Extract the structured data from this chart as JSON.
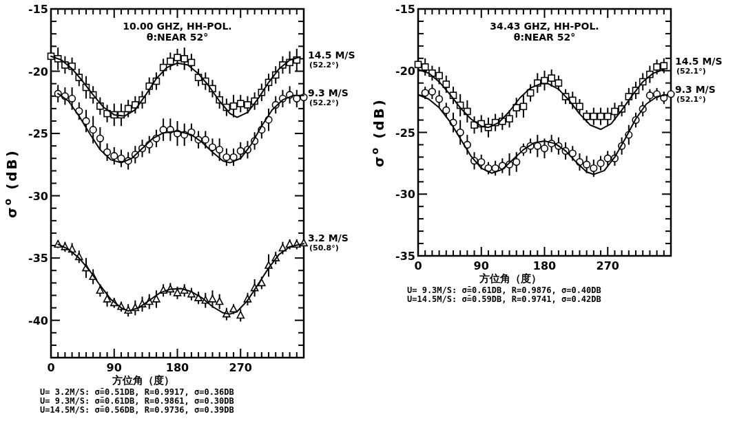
{
  "chart_data": [
    {
      "type": "scatter",
      "legend": "right",
      "title": "10.00 GHZ, HH-POL.",
      "subtitle": "θ:NEAR 52°",
      "xlabel": "方位角（度）",
      "ylabel": "σ$^{o}$ (dB)",
      "xlim": [
        0,
        360
      ],
      "ylim": [
        -43,
        -15
      ],
      "xticks": [
        0,
        {
          "value": 10,
          "label": null
        },
        {
          "value": 20,
          "label": null
        },
        {
          "value": 30,
          "label": null
        },
        {
          "value": 40,
          "label": null
        },
        {
          "value": 50,
          "label": null
        },
        {
          "value": 60,
          "label": null
        },
        {
          "value": 70,
          "label": null
        },
        {
          "value": 80,
          "label": null
        },
        90,
        {
          "value": 100,
          "label": null
        },
        {
          "value": 110,
          "label": null
        },
        {
          "value": 120,
          "label": null
        },
        {
          "value": 130,
          "label": null
        },
        {
          "value": 140,
          "label": null
        },
        {
          "value": 150,
          "label": null
        },
        {
          "value": 160,
          "label": null
        },
        {
          "value": 170,
          "label": null
        },
        180,
        {
          "value": 190,
          "label": null
        },
        {
          "value": 200,
          "label": null
        },
        {
          "value": 210,
          "label": null
        },
        {
          "value": 220,
          "label": null
        },
        {
          "value": 230,
          "label": null
        },
        {
          "value": 240,
          "label": null
        },
        {
          "value": 250,
          "label": null
        },
        {
          "value": 260,
          "label": null
        },
        270,
        {
          "value": 280,
          "label": null
        },
        {
          "value": 290,
          "label": null
        },
        {
          "value": 300,
          "label": null
        },
        {
          "value": 310,
          "label": null
        },
        {
          "value": 320,
          "label": null
        },
        {
          "value": 330,
          "label": null
        },
        {
          "value": 340,
          "label": null
        },
        {
          "value": 350,
          "label": null
        },
        {
          "value": 360,
          "label": null
        }
      ],
      "yticks": [
        {
          "value": -43,
          "label": null
        },
        {
          "value": -42,
          "label": null
        },
        {
          "value": -41,
          "label": null
        },
        -40,
        {
          "value": -39,
          "label": null
        },
        {
          "value": -38,
          "label": null
        },
        {
          "value": -37,
          "label": null
        },
        {
          "value": -36,
          "label": null
        },
        -35,
        {
          "value": -34,
          "label": null
        },
        {
          "value": -33,
          "label": null
        },
        {
          "value": -32,
          "label": null
        },
        {
          "value": -31,
          "label": null
        },
        -30,
        {
          "value": -29,
          "label": null
        },
        {
          "value": -28,
          "label": null
        },
        {
          "value": -27,
          "label": null
        },
        {
          "value": -26,
          "label": null
        },
        -25,
        {
          "value": -24,
          "label": null
        },
        {
          "value": -23,
          "label": null
        },
        {
          "value": -22,
          "label": null
        },
        {
          "value": -21,
          "label": null
        },
        -20,
        {
          "value": -19,
          "label": null
        },
        {
          "value": -18,
          "label": null
        },
        {
          "value": -17,
          "label": null
        },
        {
          "value": -16,
          "label": null
        },
        -15
      ],
      "annotations": [
        "U= 3.2M/S: σ̄=0.51DB, R=0.9917, σ=0.36DB",
        "U= 9.3M/S: σ̄=0.61DB, R=0.9861, σ=0.30DB",
        "U=14.5M/S: σ̄=0.56DB, R=0.9736, σ=0.39DB"
      ],
      "series": [
        {
          "name": "14.5 M/S (52.2°)",
          "color": "#000000",
          "marker": "square",
          "x": [
            0,
            10,
            20,
            30,
            40,
            50,
            60,
            70,
            80,
            90,
            100,
            110,
            120,
            130,
            140,
            150,
            160,
            170,
            180,
            190,
            200,
            210,
            220,
            230,
            240,
            250,
            260,
            270,
            280,
            290,
            300,
            310,
            320,
            330,
            340,
            350
          ],
          "values": [
            -18.8,
            -19.0,
            -19.5,
            -19.6,
            -20.5,
            -21.3,
            -21.9,
            -22.8,
            -23.4,
            -23.5,
            -23.5,
            -23.0,
            -22.7,
            -22.3,
            -21.2,
            -20.8,
            -19.7,
            -19.2,
            -18.9,
            -19.0,
            -19.3,
            -20.5,
            -20.8,
            -21.4,
            -22.3,
            -22.9,
            -22.8,
            -22.6,
            -22.7,
            -22.4,
            -21.7,
            -20.9,
            -20.3,
            -19.5,
            -19.3,
            -19.1
          ],
          "errors": [
            0.7,
            0.9,
            0.7,
            0.7,
            0.7,
            0.9,
            0.7,
            0.7,
            0.7,
            0.9,
            0.9,
            0.7,
            0.7,
            0.7,
            0.7,
            0.7,
            0.7,
            0.7,
            0.7,
            0.9,
            0.7,
            0.7,
            0.7,
            0.7,
            0.7,
            0.7,
            0.9,
            0.7,
            0.7,
            0.7,
            0.7,
            0.7,
            0.7,
            0.7,
            0.9,
            0.9
          ]
        },
        {
          "name": "9.3 M/S (52.2°)",
          "color": "#000000",
          "marker": "circle",
          "x": [
            10,
            20,
            30,
            40,
            50,
            60,
            70,
            80,
            90,
            100,
            110,
            120,
            130,
            140,
            150,
            160,
            170,
            180,
            190,
            200,
            210,
            220,
            230,
            240,
            250,
            260,
            270,
            280,
            290,
            300,
            310,
            320,
            330,
            340,
            350,
            360
          ],
          "values": [
            -21.8,
            -22.0,
            -22.2,
            -23.2,
            -24.0,
            -24.7,
            -25.4,
            -26.5,
            -26.8,
            -27.0,
            -27.2,
            -26.7,
            -26.2,
            -25.9,
            -25.4,
            -24.7,
            -24.7,
            -25.0,
            -25.1,
            -24.9,
            -25.5,
            -25.5,
            -26.1,
            -26.3,
            -26.9,
            -26.9,
            -26.4,
            -26.3,
            -25.6,
            -24.7,
            -23.9,
            -22.7,
            -22.2,
            -21.9,
            -22.2,
            -22.1
          ],
          "errors": [
            0.7,
            0.7,
            0.9,
            0.7,
            0.9,
            1.1,
            0.9,
            0.7,
            0.7,
            0.7,
            0.7,
            0.7,
            0.7,
            0.7,
            0.7,
            0.9,
            0.9,
            1.0,
            0.9,
            0.7,
            0.7,
            0.7,
            0.7,
            0.9,
            0.7,
            0.7,
            0.7,
            0.7,
            0.7,
            0.7,
            0.9,
            0.7,
            0.7,
            0.7,
            0.7,
            0.2
          ]
        },
        {
          "name": "3.2 M/S (50.8°)",
          "color": "#000000",
          "marker": "triangle",
          "x": [
            10,
            20,
            30,
            40,
            50,
            60,
            70,
            80,
            90,
            100,
            110,
            120,
            130,
            140,
            150,
            160,
            170,
            180,
            190,
            200,
            210,
            220,
            230,
            240,
            250,
            260,
            270,
            280,
            290,
            300,
            310,
            320,
            330,
            340,
            350,
            360
          ],
          "values": [
            -33.9,
            -34.1,
            -34.3,
            -34.9,
            -35.8,
            -36.5,
            -37.6,
            -38.3,
            -38.6,
            -38.9,
            -39.2,
            -39.0,
            -38.7,
            -38.5,
            -38.3,
            -37.6,
            -37.5,
            -37.8,
            -37.6,
            -37.9,
            -38.2,
            -38.4,
            -38.3,
            -38.5,
            -39.5,
            -39.1,
            -39.6,
            -38.3,
            -37.4,
            -37.0,
            -35.6,
            -35.0,
            -34.2,
            -33.9,
            -33.9,
            -33.8
          ],
          "errors": [
            0.3,
            0.4,
            0.5,
            0.5,
            0.8,
            0.6,
            0.5,
            0.6,
            0.4,
            0.4,
            0.5,
            0.6,
            0.6,
            0.6,
            0.7,
            0.5,
            0.5,
            0.5,
            0.5,
            0.5,
            0.5,
            0.6,
            0.7,
            0.6,
            0.5,
            0.4,
            0.5,
            0.5,
            0.7,
            0.5,
            0.9,
            0.5,
            0.5,
            0.4,
            0.4,
            0.2
          ]
        },
        {
          "type": "line",
          "color": "#000000",
          "x": [
            0,
            15,
            30,
            45,
            60,
            75,
            90,
            105,
            120,
            135,
            150,
            165,
            180,
            195,
            210,
            225,
            240,
            255,
            265,
            280,
            295,
            310,
            325,
            340,
            355
          ],
          "values": [
            -18.8,
            -19.1,
            -19.8,
            -20.8,
            -21.9,
            -22.9,
            -23.5,
            -23.6,
            -23.1,
            -21.9,
            -20.6,
            -19.7,
            -19.35,
            -19.5,
            -20.2,
            -21.2,
            -22.4,
            -23.4,
            -23.7,
            -23.3,
            -22.2,
            -20.9,
            -19.8,
            -19.1,
            -18.85
          ]
        },
        {
          "type": "line",
          "color": "#000000",
          "x": [
            10,
            25,
            40,
            55,
            70,
            85,
            100,
            115,
            130,
            145,
            160,
            180,
            200,
            215,
            230,
            245,
            255,
            270,
            285,
            300,
            315,
            330,
            345,
            360
          ],
          "values": [
            -21.8,
            -22.4,
            -23.6,
            -25.0,
            -26.3,
            -27.1,
            -27.35,
            -27.0,
            -26.2,
            -25.4,
            -24.95,
            -24.8,
            -25.1,
            -25.7,
            -26.5,
            -27.2,
            -27.35,
            -27.0,
            -25.9,
            -24.4,
            -23.1,
            -22.3,
            -21.95,
            -21.95
          ]
        },
        {
          "type": "line",
          "color": "#000000",
          "x": [
            10,
            25,
            40,
            55,
            70,
            85,
            100,
            110,
            125,
            140,
            155,
            170,
            185,
            200,
            215,
            230,
            245,
            255,
            265,
            280,
            295,
            310,
            325,
            340,
            360
          ],
          "values": [
            -33.9,
            -34.3,
            -35.0,
            -36.0,
            -37.2,
            -38.3,
            -39.0,
            -39.25,
            -39.0,
            -38.4,
            -37.8,
            -37.5,
            -37.45,
            -37.7,
            -38.2,
            -38.9,
            -39.4,
            -39.5,
            -39.3,
            -38.4,
            -37.1,
            -35.8,
            -34.7,
            -34.1,
            -33.85
          ]
        }
      ]
    },
    {
      "type": "scatter",
      "legend": "right",
      "title": "34.43 GHZ, HH-POL.",
      "subtitle": "θ:NEAR 52°",
      "xlabel": "方位角（度）",
      "ylabel": "σ$^{o}$ (dB)",
      "xlim": [
        0,
        360
      ],
      "ylim": [
        -35,
        -15
      ],
      "xticks": [
        0,
        {
          "value": 10,
          "label": null
        },
        {
          "value": 20,
          "label": null
        },
        {
          "value": 30,
          "label": null
        },
        {
          "value": 40,
          "label": null
        },
        {
          "value": 50,
          "label": null
        },
        {
          "value": 60,
          "label": null
        },
        {
          "value": 70,
          "label": null
        },
        {
          "value": 80,
          "label": null
        },
        90,
        {
          "value": 100,
          "label": null
        },
        {
          "value": 110,
          "label": null
        },
        {
          "value": 120,
          "label": null
        },
        {
          "value": 130,
          "label": null
        },
        {
          "value": 140,
          "label": null
        },
        {
          "value": 150,
          "label": null
        },
        {
          "value": 160,
          "label": null
        },
        {
          "value": 170,
          "label": null
        },
        180,
        {
          "value": 190,
          "label": null
        },
        {
          "value": 200,
          "label": null
        },
        {
          "value": 210,
          "label": null
        },
        {
          "value": 220,
          "label": null
        },
        {
          "value": 230,
          "label": null
        },
        {
          "value": 240,
          "label": null
        },
        {
          "value": 250,
          "label": null
        },
        {
          "value": 260,
          "label": null
        },
        270,
        {
          "value": 280,
          "label": null
        },
        {
          "value": 290,
          "label": null
        },
        {
          "value": 300,
          "label": null
        },
        {
          "value": 310,
          "label": null
        },
        {
          "value": 320,
          "label": null
        },
        {
          "value": 330,
          "label": null
        },
        {
          "value": 340,
          "label": null
        },
        {
          "value": 350,
          "label": null
        },
        {
          "value": 360,
          "label": null
        }
      ],
      "yticks": [
        -35,
        {
          "value": -34,
          "label": null
        },
        {
          "value": -33,
          "label": null
        },
        {
          "value": -32,
          "label": null
        },
        {
          "value": -31,
          "label": null
        },
        -30,
        {
          "value": -29,
          "label": null
        },
        {
          "value": -28,
          "label": null
        },
        {
          "value": -27,
          "label": null
        },
        {
          "value": -26,
          "label": null
        },
        -25,
        {
          "value": -24,
          "label": null
        },
        {
          "value": -23,
          "label": null
        },
        {
          "value": -22,
          "label": null
        },
        {
          "value": -21,
          "label": null
        },
        -20,
        {
          "value": -19,
          "label": null
        },
        {
          "value": -18,
          "label": null
        },
        {
          "value": -17,
          "label": null
        },
        {
          "value": -16,
          "label": null
        },
        -15
      ],
      "annotations": [
        "U= 9.3M/S: σ̄=0.61DB, R=0.9876, σ=0.40DB",
        "U=14.5M/S: σ̄=0.59DB, R=0.9741, σ=0.42DB"
      ],
      "series": [
        {
          "name": "14.5 M/S (52.1°)",
          "color": "#000000",
          "marker": "square",
          "x": [
            0,
            10,
            20,
            30,
            40,
            50,
            60,
            70,
            80,
            90,
            100,
            110,
            120,
            130,
            140,
            150,
            160,
            170,
            180,
            190,
            200,
            210,
            220,
            230,
            240,
            250,
            260,
            270,
            280,
            290,
            300,
            310,
            320,
            330,
            340,
            350
          ],
          "values": [
            -19.5,
            -19.7,
            -20.2,
            -20.4,
            -21.1,
            -22.0,
            -22.8,
            -23.3,
            -24.4,
            -24.3,
            -24.6,
            -24.2,
            -24.1,
            -23.9,
            -23.0,
            -22.9,
            -21.8,
            -21.0,
            -20.8,
            -20.6,
            -21.0,
            -22.1,
            -22.4,
            -22.9,
            -23.7,
            -23.7,
            -23.7,
            -23.7,
            -23.3,
            -23.1,
            -22.1,
            -21.6,
            -20.9,
            -20.3,
            -19.7,
            -19.6
          ],
          "errors": [
            0.3,
            0.7,
            0.6,
            0.7,
            0.7,
            0.7,
            0.9,
            0.9,
            0.7,
            0.7,
            0.8,
            0.7,
            0.7,
            0.7,
            0.8,
            0.9,
            0.7,
            0.8,
            0.8,
            0.7,
            0.6,
            0.6,
            0.7,
            0.6,
            0.5,
            0.7,
            0.7,
            0.7,
            0.7,
            0.6,
            0.7,
            0.7,
            0.7,
            0.7,
            0.6,
            0.6
          ]
        },
        {
          "name": "9.3 M/S (52.1°)",
          "color": "#000000",
          "marker": "circle",
          "x": [
            10,
            20,
            30,
            40,
            50,
            60,
            70,
            80,
            90,
            100,
            110,
            120,
            130,
            140,
            150,
            160,
            170,
            180,
            190,
            200,
            210,
            220,
            230,
            240,
            250,
            260,
            270,
            280,
            290,
            300,
            310,
            320,
            330,
            340,
            350,
            360
          ],
          "values": [
            -21.8,
            -21.7,
            -22.3,
            -23.2,
            -24.2,
            -25.0,
            -26.0,
            -27.3,
            -27.4,
            -27.9,
            -27.9,
            -27.7,
            -27.6,
            -27.4,
            -26.4,
            -26.1,
            -26.1,
            -26.3,
            -25.9,
            -26.1,
            -26.5,
            -26.7,
            -27.4,
            -27.6,
            -27.9,
            -27.5,
            -27.1,
            -27.1,
            -26.1,
            -25.2,
            -24.0,
            -23.1,
            -22.0,
            -21.9,
            -22.2,
            -21.9
          ],
          "errors": [
            0.5,
            0.6,
            0.7,
            0.6,
            0.8,
            1.0,
            0.8,
            0.7,
            0.6,
            0.5,
            0.6,
            0.6,
            0.9,
            0.8,
            0.5,
            0.6,
            0.9,
            0.8,
            0.7,
            0.7,
            0.7,
            0.6,
            0.7,
            0.7,
            0.7,
            0.6,
            0.6,
            0.6,
            0.7,
            0.8,
            0.6,
            0.6,
            0.5,
            0.5,
            0.5,
            0.2
          ]
        },
        {
          "type": "line",
          "color": "#000000",
          "x": [
            0,
            15,
            30,
            45,
            60,
            75,
            90,
            100,
            115,
            130,
            145,
            160,
            175,
            185,
            200,
            215,
            230,
            245,
            260,
            275,
            290,
            305,
            320,
            335,
            350
          ],
          "values": [
            -19.9,
            -20.2,
            -20.9,
            -21.9,
            -23.0,
            -23.9,
            -24.5,
            -24.6,
            -24.2,
            -23.3,
            -22.2,
            -21.4,
            -21.05,
            -21.05,
            -21.5,
            -22.4,
            -23.5,
            -24.4,
            -24.75,
            -24.3,
            -23.2,
            -22.0,
            -20.9,
            -20.2,
            -19.9
          ]
        },
        {
          "type": "line",
          "color": "#000000",
          "x": [
            0,
            15,
            30,
            45,
            60,
            75,
            90,
            105,
            120,
            135,
            150,
            165,
            180,
            195,
            210,
            225,
            240,
            250,
            265,
            280,
            295,
            310,
            325,
            340,
            355
          ],
          "values": [
            -21.95,
            -22.3,
            -23.0,
            -24.1,
            -25.5,
            -26.9,
            -27.9,
            -28.3,
            -28.0,
            -27.2,
            -26.4,
            -25.85,
            -25.7,
            -25.9,
            -26.5,
            -27.4,
            -28.2,
            -28.4,
            -28.1,
            -27.0,
            -25.5,
            -23.9,
            -22.7,
            -22.1,
            -21.95
          ]
        }
      ]
    }
  ]
}
